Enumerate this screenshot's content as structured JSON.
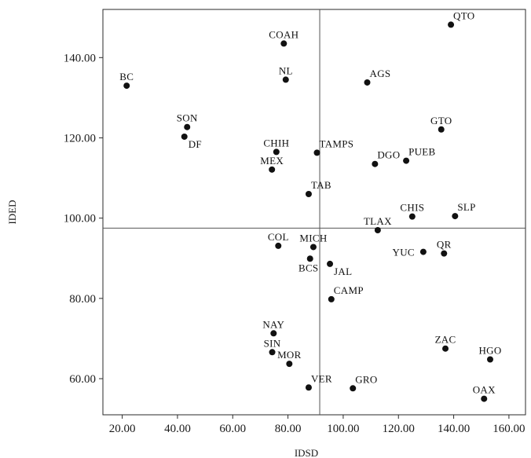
{
  "chart_data": {
    "type": "scatter",
    "title": "",
    "xlabel": "IDSD",
    "ylabel": "IDED",
    "xlim": [
      13,
      166
    ],
    "ylim": [
      51,
      152
    ],
    "xticks": [
      20,
      40,
      60,
      80,
      100,
      120,
      140,
      160
    ],
    "yticks": [
      60,
      80,
      100,
      120,
      140
    ],
    "xtick_labels": [
      "20.00",
      "40.00",
      "60.00",
      "80.00",
      "100.00",
      "120.00",
      "140.00",
      "160.00"
    ],
    "ytick_labels": [
      "60.00",
      "80.00",
      "100.00",
      "120.00",
      "140.00"
    ],
    "reference_lines": {
      "x": 91.5,
      "y": 97.5
    },
    "grid": false,
    "points": [
      {
        "label": "QTO",
        "x": 139.0,
        "y": 148.2,
        "pos": "ne"
      },
      {
        "label": "COAH",
        "x": 78.5,
        "y": 143.5,
        "pos": "n"
      },
      {
        "label": "NL",
        "x": 79.2,
        "y": 134.5,
        "pos": "n"
      },
      {
        "label": "AGS",
        "x": 108.7,
        "y": 133.8,
        "pos": "ne"
      },
      {
        "label": "BC",
        "x": 21.6,
        "y": 133.0,
        "pos": "n"
      },
      {
        "label": "SON",
        "x": 43.5,
        "y": 122.7,
        "pos": "n"
      },
      {
        "label": "GTO",
        "x": 135.5,
        "y": 122.1,
        "pos": "n"
      },
      {
        "label": "DF",
        "x": 42.5,
        "y": 120.3,
        "pos": "se"
      },
      {
        "label": "CHIH",
        "x": 75.8,
        "y": 116.5,
        "pos": "n"
      },
      {
        "label": "TAMPS",
        "x": 90.5,
        "y": 116.3,
        "pos": "ne"
      },
      {
        "label": "PUEB",
        "x": 122.8,
        "y": 114.3,
        "pos": "ne"
      },
      {
        "label": "DGO",
        "x": 111.5,
        "y": 113.5,
        "pos": "ne"
      },
      {
        "label": "MEX",
        "x": 74.2,
        "y": 112.1,
        "pos": "n"
      },
      {
        "label": "TAB",
        "x": 87.5,
        "y": 106.0,
        "pos": "ne"
      },
      {
        "label": "CHIS",
        "x": 125.0,
        "y": 100.4,
        "pos": "n"
      },
      {
        "label": "SLP",
        "x": 140.5,
        "y": 100.5,
        "pos": "ne"
      },
      {
        "label": "TLAX",
        "x": 112.5,
        "y": 97.0,
        "pos": "n"
      },
      {
        "label": "COL",
        "x": 76.5,
        "y": 93.1,
        "pos": "n"
      },
      {
        "label": "MICH",
        "x": 89.2,
        "y": 92.8,
        "pos": "n"
      },
      {
        "label": "YUC",
        "x": 129.0,
        "y": 91.6,
        "pos": "w"
      },
      {
        "label": "QR",
        "x": 136.5,
        "y": 91.2,
        "pos": "n"
      },
      {
        "label": "BCS",
        "x": 88.0,
        "y": 89.9,
        "pos": "s"
      },
      {
        "label": "JAL",
        "x": 95.2,
        "y": 88.6,
        "pos": "se"
      },
      {
        "label": "CAMP",
        "x": 95.7,
        "y": 79.8,
        "pos": "ne"
      },
      {
        "label": "NAY",
        "x": 74.8,
        "y": 71.3,
        "pos": "n"
      },
      {
        "label": "SIN",
        "x": 74.3,
        "y": 66.6,
        "pos": "n"
      },
      {
        "label": "MOR",
        "x": 80.5,
        "y": 63.7,
        "pos": "n"
      },
      {
        "label": "ZAC",
        "x": 137.0,
        "y": 67.5,
        "pos": "n"
      },
      {
        "label": "HGO",
        "x": 153.2,
        "y": 64.8,
        "pos": "n"
      },
      {
        "label": "VER",
        "x": 87.5,
        "y": 57.8,
        "pos": "ne"
      },
      {
        "label": "GRO",
        "x": 103.5,
        "y": 57.6,
        "pos": "ne"
      },
      {
        "label": "OAX",
        "x": 151.0,
        "y": 55.0,
        "pos": "n"
      }
    ]
  }
}
